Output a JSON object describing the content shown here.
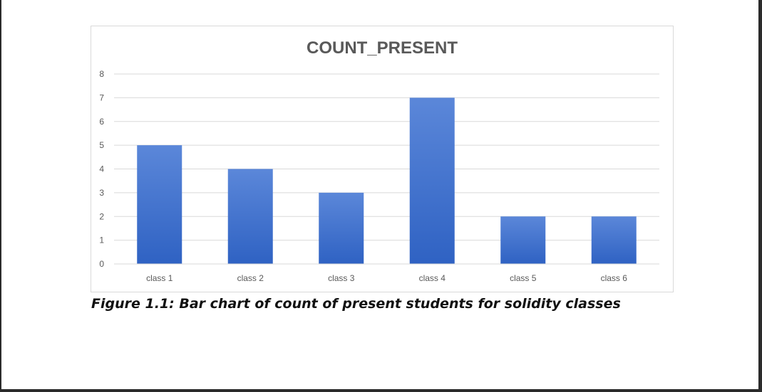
{
  "caption": "Figure 1.1: Bar chart of count of present students for solidity classes",
  "chart_data": {
    "type": "bar",
    "title": "COUNT_PRESENT",
    "xlabel": "",
    "ylabel": "",
    "categories": [
      "class 1",
      "class 2",
      "class 3",
      "class 4",
      "class 5",
      "class 6"
    ],
    "values": [
      5,
      4,
      3,
      7,
      2,
      2
    ],
    "ylim": [
      0,
      8
    ],
    "yticks": [
      "0",
      "1",
      "2",
      "3",
      "4",
      "5",
      "6",
      "7",
      "8"
    ],
    "grid": true,
    "legend": "none",
    "bar_color_top": "#5b87d9",
    "bar_color_bottom": "#2f62c3",
    "grid_color": "#d9d9d9",
    "tick_label_color": "#595959",
    "title_color": "#595959"
  }
}
